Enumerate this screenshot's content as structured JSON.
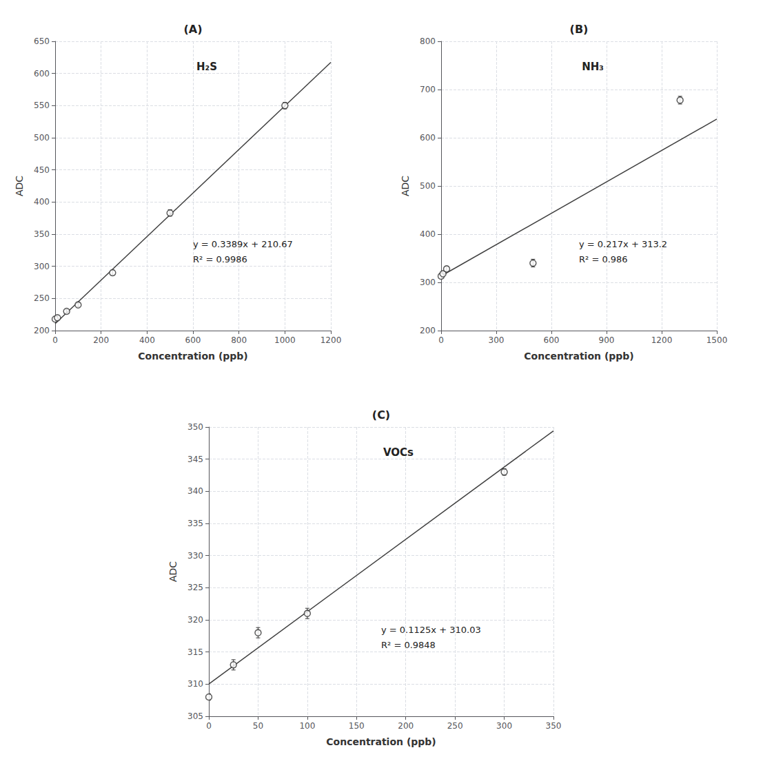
{
  "chart_data": [
    {
      "type": "scatter",
      "title": "(A)",
      "xlabel": "Concentration (ppb)",
      "ylabel": "ADC",
      "annotations": [
        "H₂S",
        "y = 0.3389x + 210.67",
        "R² = 0.9986"
      ],
      "xlim": [
        0,
        1200
      ],
      "ylim": [
        200,
        650
      ],
      "xticks": [
        0,
        200,
        400,
        600,
        800,
        1000,
        1200
      ],
      "yticks": [
        200,
        250,
        300,
        350,
        400,
        450,
        500,
        550,
        600,
        650
      ],
      "grid": true,
      "series": [
        {
          "type": "line",
          "color": "#404040",
          "x": [
            0,
            1200
          ],
          "values": [
            210.67,
            617.35
          ]
        },
        {
          "type": "scatter",
          "color": "#333333",
          "marker": "circle",
          "x": [
            0,
            10,
            50,
            100,
            250,
            500,
            1000
          ],
          "values": [
            218,
            220,
            230,
            240,
            290,
            383,
            550
          ],
          "yerr": [
            3,
            3,
            3,
            3,
            4,
            5,
            5
          ]
        }
      ]
    },
    {
      "type": "scatter",
      "title": "(B)",
      "xlabel": "Concentration (ppb)",
      "ylabel": "ADC",
      "annotations": [
        "NH₃",
        "y = 0.217x + 313.2",
        "R² = 0.986"
      ],
      "xlim": [
        0,
        1500
      ],
      "ylim": [
        200,
        800
      ],
      "xticks": [
        0,
        300,
        600,
        900,
        1200,
        1500
      ],
      "yticks": [
        200,
        300,
        400,
        500,
        600,
        700,
        800
      ],
      "grid": true,
      "series": [
        {
          "type": "line",
          "color": "#404040",
          "x": [
            0,
            1500
          ],
          "values": [
            313.2,
            638.7
          ]
        },
        {
          "type": "scatter",
          "color": "#333333",
          "marker": "circle",
          "x": [
            0,
            10,
            30,
            500,
            1300
          ],
          "values": [
            313,
            318,
            328,
            340,
            678
          ],
          "yerr": [
            4,
            4,
            5,
            8,
            8
          ]
        }
      ]
    },
    {
      "type": "scatter",
      "title": "(C)",
      "xlabel": "Concentration (ppb)",
      "ylabel": "ADC",
      "annotations": [
        "VOCs",
        "y = 0.1125x + 310.03",
        "R² = 0.9848"
      ],
      "xlim": [
        0,
        350
      ],
      "ylim": [
        305,
        350
      ],
      "xticks": [
        0,
        50,
        100,
        150,
        200,
        250,
        300,
        350
      ],
      "yticks": [
        305,
        310,
        315,
        320,
        325,
        330,
        335,
        340,
        345,
        350
      ],
      "grid": true,
      "series": [
        {
          "type": "line",
          "color": "#404040",
          "x": [
            0,
            350
          ],
          "values": [
            310.03,
            349.405
          ]
        },
        {
          "type": "scatter",
          "color": "#333333",
          "marker": "circle",
          "x": [
            0,
            25,
            50,
            100,
            300
          ],
          "values": [
            308,
            313,
            318,
            321,
            343
          ],
          "yerr": [
            0.5,
            0.8,
            0.8,
            0.8,
            0.5
          ]
        }
      ]
    }
  ]
}
